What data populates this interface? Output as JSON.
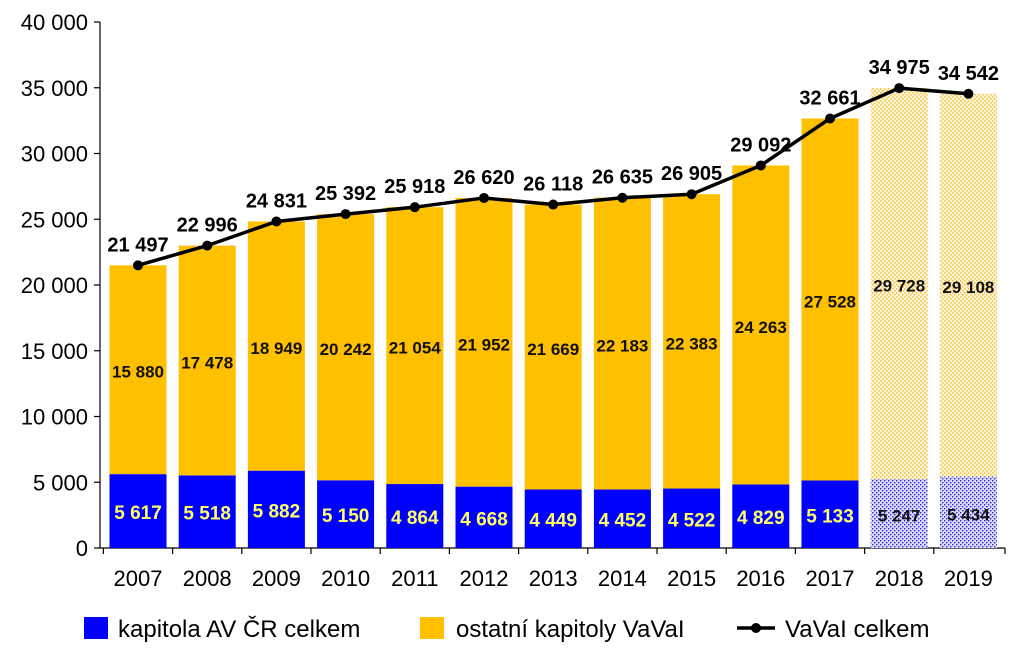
{
  "chart_data": {
    "type": "bar",
    "stacked": true,
    "categories": [
      "2007",
      "2008",
      "2009",
      "2010",
      "2011",
      "2012",
      "2013",
      "2014",
      "2015",
      "2016",
      "2017",
      "2018",
      "2019"
    ],
    "series": [
      {
        "name": "kapitola AV ČR celkem",
        "kind": "bar",
        "color": "#0000ff",
        "values": [
          5617,
          5518,
          5882,
          5150,
          4864,
          4668,
          4449,
          4452,
          4522,
          4829,
          5133,
          5247,
          5434
        ],
        "labels": [
          "5 617",
          "5 518",
          "5 882",
          "5 150",
          "4 864",
          "4 668",
          "4 449",
          "4 452",
          "4 522",
          "4 829",
          "5 133",
          "5 247",
          "5 434"
        ]
      },
      {
        "name": "ostatní kapitoly VaVaI",
        "kind": "bar",
        "color": "#ffc000",
        "values": [
          15880,
          17478,
          18949,
          20242,
          21054,
          21952,
          21669,
          22183,
          22383,
          24263,
          27528,
          29728,
          29108
        ],
        "labels": [
          "15 880",
          "17 478",
          "18 949",
          "20 242",
          "21 054",
          "21 952",
          "21 669",
          "22 183",
          "22 383",
          "24 263",
          "27 528",
          "29 728",
          "29 108"
        ]
      },
      {
        "name": "VaVaI celkem",
        "kind": "line",
        "color": "#000000",
        "values": [
          21497,
          22996,
          24831,
          25392,
          25918,
          26620,
          26118,
          26635,
          26905,
          29092,
          32661,
          34975,
          34542
        ],
        "labels": [
          "21 497",
          "22 996",
          "24 831",
          "25 392",
          "25 918",
          "26 620",
          "26 118",
          "26 635",
          "26 905",
          "29 092",
          "32 661",
          "34 975",
          "34 542"
        ]
      }
    ],
    "projected_categories": [
      "2018",
      "2019"
    ],
    "ylim": [
      0,
      40000
    ],
    "yticks": [
      0,
      5000,
      10000,
      15000,
      20000,
      25000,
      30000,
      35000,
      40000
    ],
    "ytick_labels": [
      "0",
      "5 000",
      "10 000",
      "15 000",
      "20 000",
      "25 000",
      "30 000",
      "35 000",
      "40 000"
    ],
    "legend_position": "bottom",
    "grid": false
  }
}
